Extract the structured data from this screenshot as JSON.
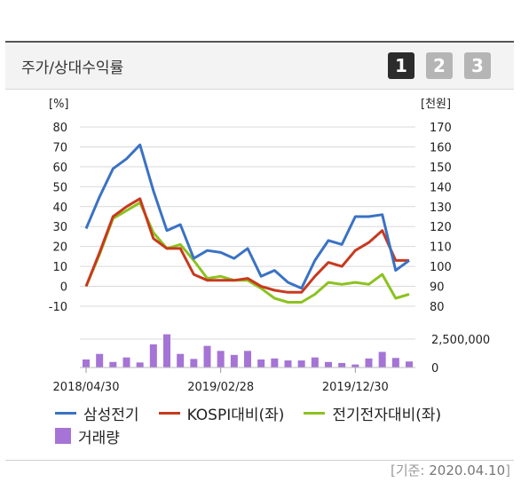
{
  "header": {
    "title": "주가/상대수익률",
    "pages": [
      "1",
      "2",
      "3"
    ],
    "active_page": "1"
  },
  "footer": {
    "open": "[",
    "label": "기준",
    "sep": ": ",
    "date": "2020.04.10",
    "close": "]"
  },
  "colors": {
    "samsung": "#3a72c4",
    "kospi": "#c8391e",
    "elec": "#8cc21f",
    "volume": "#a574d6",
    "grid": "#d9d9d9"
  },
  "chart_data": {
    "type": "line",
    "left_unit": "[%]",
    "right_unit": "[천원]",
    "left_ticks": [
      "80",
      "70",
      "60",
      "50",
      "40",
      "30",
      "20",
      "10",
      "0",
      "-10"
    ],
    "right_ticks": [
      "170",
      "160",
      "150",
      "140",
      "130",
      "120",
      "110",
      "100",
      "90",
      "80"
    ],
    "ylim_left": [
      -10,
      80
    ],
    "ylim_right": [
      80,
      170
    ],
    "volume_ticks": [
      "2,500,000",
      "0"
    ],
    "volume_lim": [
      0,
      3000000
    ],
    "x_tick_labels": [
      {
        "label": "2018/04/30",
        "index": 0
      },
      {
        "label": "2019/02/28",
        "index": 10
      },
      {
        "label": "2019/12/30",
        "index": 20
      }
    ],
    "series": [
      {
        "name": "삼성전기",
        "values": [
          29,
          45,
          59,
          64,
          71,
          48,
          28,
          31,
          14,
          18,
          17,
          14,
          19,
          5,
          8,
          2,
          -1,
          13,
          23,
          21,
          35,
          35,
          36,
          8,
          13
        ]
      },
      {
        "name": "KOSPI대비(좌)",
        "values": [
          0,
          17,
          35,
          40,
          44,
          24,
          19,
          19,
          6,
          3,
          3,
          3,
          4,
          0,
          -2,
          -3,
          -3,
          5,
          12,
          10,
          18,
          22,
          28,
          13,
          13
        ]
      },
      {
        "name": "전기전자대비(좌)",
        "values": [
          0,
          16,
          34,
          38,
          42,
          27,
          19,
          21,
          13,
          4,
          5,
          3,
          3,
          -1,
          -6,
          -8,
          -8,
          -4,
          2,
          1,
          2,
          1,
          6,
          -6,
          -4
        ]
      }
    ],
    "volume": {
      "name": "거래량",
      "values": [
        800000,
        1350000,
        550000,
        1000000,
        500000,
        2300000,
        3300000,
        1350000,
        850000,
        2150000,
        1650000,
        1250000,
        1650000,
        800000,
        900000,
        700000,
        700000,
        1000000,
        550000,
        450000,
        300000,
        900000,
        1550000,
        950000,
        600000
      ]
    }
  }
}
